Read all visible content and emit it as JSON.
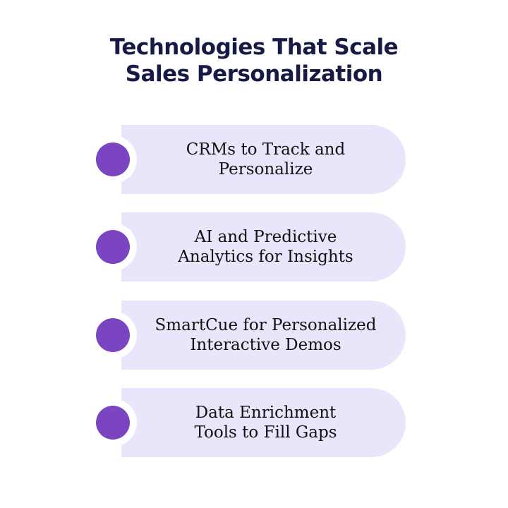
{
  "title": {
    "line1": "Technologies That Scale",
    "line2": "Sales Personalization"
  },
  "colors": {
    "title": "#161b45",
    "card": "#e9e5fb",
    "bullet": "#7b45c2"
  },
  "items": [
    {
      "line1": "CRMs to Track and",
      "line2": "Personalize"
    },
    {
      "line1": "AI and Predictive",
      "line2": "Analytics for Insights"
    },
    {
      "line1": "SmartCue for Personalized",
      "line2": "Interactive Demos"
    },
    {
      "line1": "Data Enrichment",
      "line2": "Tools to Fill Gaps"
    }
  ]
}
